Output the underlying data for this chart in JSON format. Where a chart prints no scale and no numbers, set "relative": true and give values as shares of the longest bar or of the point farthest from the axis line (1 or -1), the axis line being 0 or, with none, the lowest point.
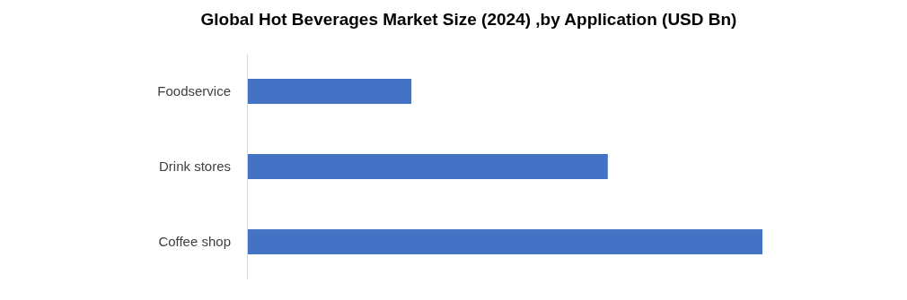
{
  "chart_data": {
    "type": "bar",
    "orientation": "horizontal",
    "relative": true,
    "title": "Global Hot Beverages Market Size (2024) ,by Application (USD Bn)",
    "categories": [
      "Foodservice",
      "Drink stores",
      "Coffee shop"
    ],
    "values": [
      0.319,
      0.7,
      1
    ],
    "color": "#4472c4"
  }
}
